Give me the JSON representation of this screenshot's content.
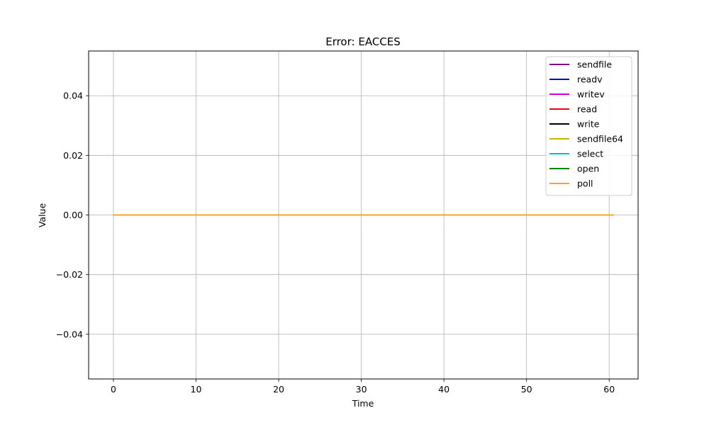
{
  "chart_data": {
    "type": "line",
    "title": "Error: EACCES",
    "xlabel": "Time",
    "ylabel": "Value",
    "xlim": [
      -3,
      63.5
    ],
    "ylim": [
      -0.055,
      0.055
    ],
    "x_ticks": [
      0,
      10,
      20,
      30,
      40,
      50,
      60
    ],
    "y_ticks": [
      -0.04,
      -0.02,
      0.0,
      0.02,
      0.04
    ],
    "x_tick_labels": [
      "0",
      "10",
      "20",
      "30",
      "40",
      "50",
      "60"
    ],
    "y_tick_labels": [
      "−0.04",
      "−0.02",
      "0.00",
      "0.02",
      "0.04"
    ],
    "grid": true,
    "legend_position": "top-right",
    "series": [
      {
        "name": "sendfile",
        "color": "#800080",
        "x": [
          0,
          60.5
        ],
        "y": [
          0,
          0
        ]
      },
      {
        "name": "readv",
        "color": "#0000cc",
        "x": [
          0,
          60.5
        ],
        "y": [
          0,
          0
        ]
      },
      {
        "name": "writev",
        "color": "#cc00cc",
        "x": [
          0,
          60.5
        ],
        "y": [
          0,
          0
        ]
      },
      {
        "name": "read",
        "color": "#ee0000",
        "x": [
          0,
          60.5
        ],
        "y": [
          0,
          0
        ]
      },
      {
        "name": "write",
        "color": "#000000",
        "x": [
          0,
          60.5
        ],
        "y": [
          0,
          0
        ]
      },
      {
        "name": "sendfile64",
        "color": "#c8b400",
        "x": [
          0,
          60.5
        ],
        "y": [
          0,
          0
        ]
      },
      {
        "name": "select",
        "color": "#00bcd4",
        "x": [
          0,
          60.5
        ],
        "y": [
          0,
          0
        ]
      },
      {
        "name": "open",
        "color": "#008000",
        "x": [
          0,
          60.5
        ],
        "y": [
          0,
          0
        ]
      },
      {
        "name": "poll",
        "color": "#f5a623",
        "x": [
          0,
          60.5
        ],
        "y": [
          0,
          0
        ]
      }
    ]
  }
}
